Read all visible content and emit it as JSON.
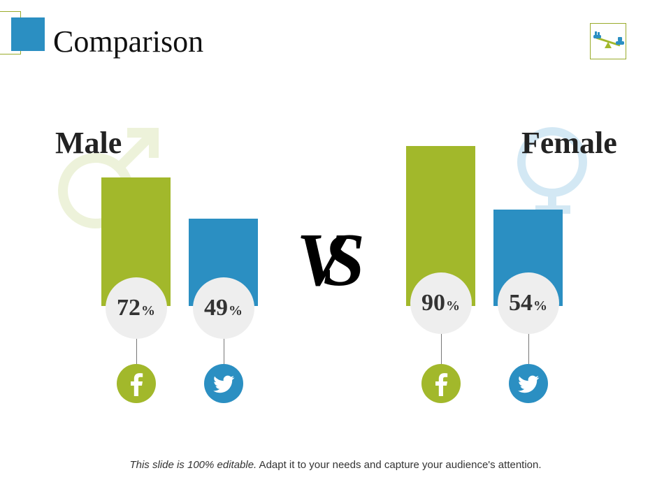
{
  "slide": {
    "title": "Comparison",
    "vs_label": "VS",
    "footer_italic": "This slide is 100% editable.",
    "footer_rest": " Adapt it to your needs and capture your audience's attention.",
    "title_icon": "balance-scale-icon"
  },
  "colors": {
    "green": "#a2b82b",
    "blue": "#2b8fc2",
    "male_symbol": "#edf2da",
    "female_symbol": "#d3e8f4",
    "circle_bg": "#eeeeee"
  },
  "chart_data": {
    "type": "bar",
    "title": "Comparison",
    "unit": "%",
    "ylim": [
      0,
      100
    ],
    "groups": [
      {
        "name": "Male",
        "symbol_icon": "male-symbol-icon",
        "bars": [
          {
            "platform": "Facebook",
            "icon": "facebook-icon",
            "value": 72,
            "label": "72",
            "unit_label": "%",
            "color": "#a2b82b"
          },
          {
            "platform": "Twitter",
            "icon": "twitter-icon",
            "value": 49,
            "label": "49",
            "unit_label": "%",
            "color": "#2b8fc2"
          }
        ]
      },
      {
        "name": "Female",
        "symbol_icon": "female-symbol-icon",
        "bars": [
          {
            "platform": "Facebook",
            "icon": "facebook-icon",
            "value": 90,
            "label": "90",
            "unit_label": "%",
            "color": "#a2b82b"
          },
          {
            "platform": "Twitter",
            "icon": "twitter-icon",
            "value": 54,
            "label": "54",
            "unit_label": "%",
            "color": "#2b8fc2"
          }
        ]
      }
    ]
  }
}
